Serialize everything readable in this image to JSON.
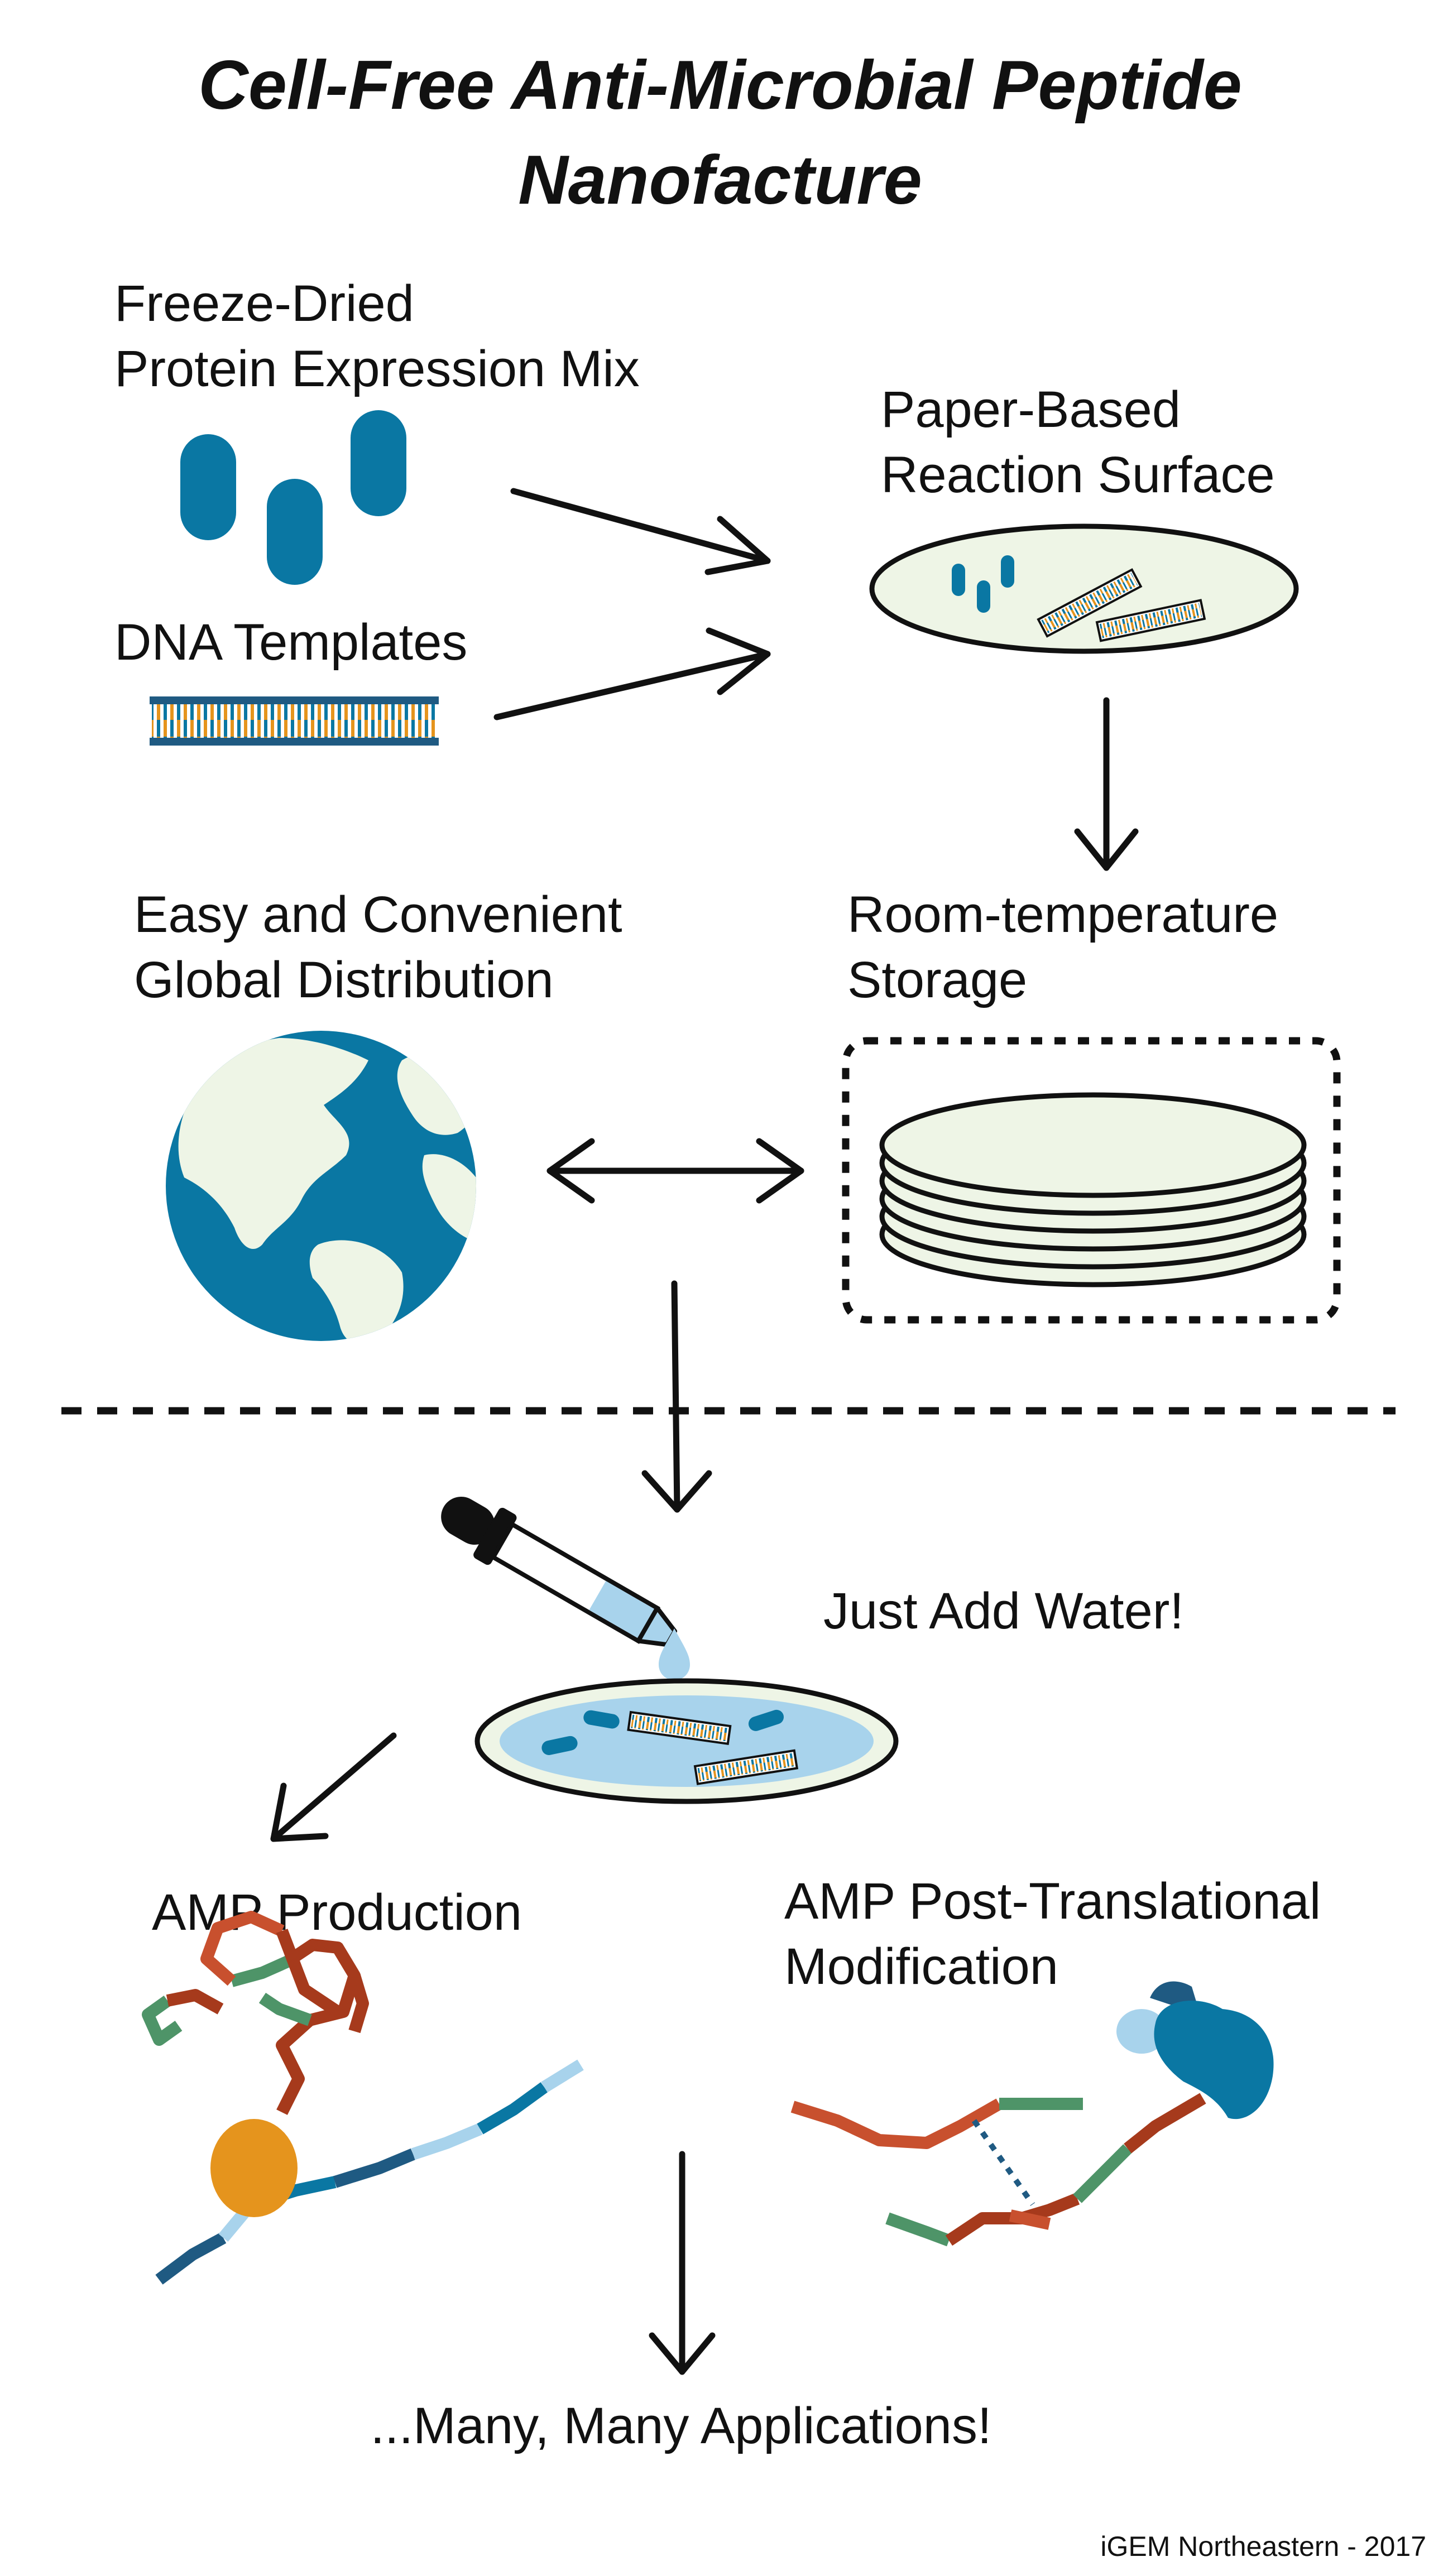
{
  "title": {
    "line1": "Cell-Free Anti-Microbial Peptide",
    "line2": "Nanofacture"
  },
  "labels": {
    "mix_line1": "Freeze-Dried",
    "mix_line2": "Protein Expression Mix",
    "dna": "DNA Templates",
    "paper_line1": "Paper-Based",
    "paper_line2": "Reaction Surface",
    "dist_line1": "Easy and Convenient",
    "dist_line2": "Global Distribution",
    "storage_line1": "Room-temperature",
    "storage_line2": "Storage",
    "water": "Just Add Water!",
    "amp_prod": "AMP Production",
    "ptm_line1": "AMP Post-Translational",
    "ptm_line2": "Modification",
    "apps": "...Many, Many Applications!",
    "credit": "iGEM Northeastern - 2017"
  },
  "icons": [
    "protein-mix-icon",
    "dna-icon",
    "paper-surface-icon",
    "paper-stack-icon",
    "globe-icon",
    "dropper-icon",
    "water-drop-icon",
    "wet-paper-icon",
    "ribosome-icon",
    "enzyme-icon",
    "peptide-chain-icon"
  ],
  "colors": {
    "blue": "#0a77a3",
    "dark_blue": "#1f5a82",
    "light_blue": "#a8d3ec",
    "orange": "#e5941d",
    "red_brown": "#a63a1c",
    "rust": "#c8502e",
    "green": "#4e9468",
    "pale_green": "#eef5e6"
  }
}
